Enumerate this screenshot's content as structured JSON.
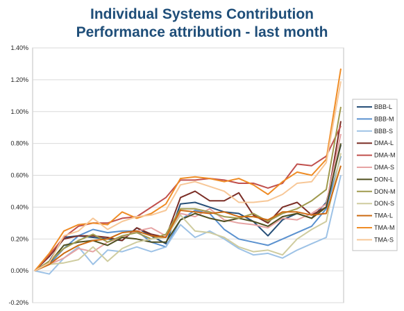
{
  "chart_data": {
    "type": "line",
    "title": "Individual Systems Contribution",
    "subtitle": "Performance attribution - last month",
    "ylim": [
      -0.2,
      1.4
    ],
    "yticks": [
      "-0.20%",
      "0.00%",
      "0.20%",
      "0.40%",
      "0.60%",
      "0.80%",
      "1.00%",
      "1.20%",
      "1.40%"
    ],
    "grid": "horizontal",
    "legend_position": "right",
    "series": [
      {
        "name": "BBB-L",
        "color": "#264f78",
        "values": [
          0.0,
          0.06,
          0.21,
          0.22,
          0.21,
          0.2,
          0.19,
          0.27,
          0.22,
          0.17,
          0.42,
          0.43,
          0.4,
          0.37,
          0.36,
          0.31,
          0.22,
          0.32,
          0.36,
          0.33,
          0.43,
          0.79
        ]
      },
      {
        "name": "BBB-M",
        "color": "#5a91cf",
        "values": [
          0.0,
          0.04,
          0.14,
          0.22,
          0.26,
          0.24,
          0.25,
          0.25,
          0.18,
          0.15,
          0.32,
          0.38,
          0.36,
          0.26,
          0.2,
          0.18,
          0.16,
          0.2,
          0.24,
          0.28,
          0.39,
          0.72
        ]
      },
      {
        "name": "BBB-S",
        "color": "#9dc2e6",
        "values": [
          0.0,
          -0.02,
          0.08,
          0.15,
          0.04,
          0.13,
          0.12,
          0.15,
          0.12,
          0.15,
          0.29,
          0.21,
          0.25,
          0.2,
          0.14,
          0.1,
          0.11,
          0.08,
          0.13,
          0.17,
          0.21,
          0.6
        ]
      },
      {
        "name": "DMA-L",
        "color": "#7b2e26",
        "values": [
          0.0,
          0.09,
          0.2,
          0.22,
          0.22,
          0.21,
          0.19,
          0.27,
          0.23,
          0.21,
          0.46,
          0.5,
          0.44,
          0.44,
          0.49,
          0.35,
          0.3,
          0.4,
          0.43,
          0.35,
          0.4,
          0.94
        ]
      },
      {
        "name": "DMA-M",
        "color": "#c0504d",
        "values": [
          0.0,
          0.1,
          0.21,
          0.28,
          0.3,
          0.3,
          0.33,
          0.34,
          0.4,
          0.46,
          0.57,
          0.57,
          0.58,
          0.57,
          0.55,
          0.55,
          0.52,
          0.55,
          0.67,
          0.66,
          0.72,
          0.91
        ]
      },
      {
        "name": "DMA-S",
        "color": "#e6a3a3",
        "values": [
          0.0,
          0.04,
          0.08,
          0.14,
          0.12,
          0.18,
          0.21,
          0.25,
          0.27,
          0.22,
          0.36,
          0.34,
          0.39,
          0.32,
          0.3,
          0.29,
          0.27,
          0.33,
          0.32,
          0.36,
          0.42,
          0.86
        ]
      },
      {
        "name": "DON-L",
        "color": "#4f4f1f",
        "values": [
          0.0,
          0.05,
          0.16,
          0.18,
          0.19,
          0.16,
          0.21,
          0.2,
          0.18,
          0.18,
          0.32,
          0.36,
          0.33,
          0.31,
          0.33,
          0.31,
          0.28,
          0.34,
          0.36,
          0.33,
          0.4,
          0.8
        ]
      },
      {
        "name": "DON-M",
        "color": "#a09a4e",
        "values": [
          0.0,
          0.06,
          0.14,
          0.19,
          0.23,
          0.18,
          0.22,
          0.24,
          0.2,
          0.23,
          0.39,
          0.39,
          0.37,
          0.34,
          0.33,
          0.36,
          0.31,
          0.36,
          0.39,
          0.44,
          0.51,
          1.03
        ]
      },
      {
        "name": "DON-S",
        "color": "#cfcc9f",
        "values": [
          0.0,
          0.04,
          0.05,
          0.07,
          0.15,
          0.06,
          0.14,
          0.18,
          0.2,
          0.21,
          0.35,
          0.25,
          0.24,
          0.21,
          0.15,
          0.12,
          0.13,
          0.1,
          0.2,
          0.26,
          0.31,
          0.74
        ]
      },
      {
        "name": "TMA-L",
        "color": "#cc6a12",
        "values": [
          0.0,
          0.04,
          0.11,
          0.16,
          0.19,
          0.2,
          0.24,
          0.25,
          0.22,
          0.21,
          0.38,
          0.37,
          0.36,
          0.37,
          0.34,
          0.34,
          0.32,
          0.37,
          0.37,
          0.35,
          0.36,
          0.66
        ]
      },
      {
        "name": "TMA-M",
        "color": "#ef8c25",
        "values": [
          0.0,
          0.11,
          0.25,
          0.29,
          0.3,
          0.29,
          0.37,
          0.33,
          0.36,
          0.42,
          0.58,
          0.59,
          0.58,
          0.56,
          0.58,
          0.54,
          0.48,
          0.56,
          0.62,
          0.6,
          0.7,
          1.27
        ]
      },
      {
        "name": "TMA-S",
        "color": "#f7c797",
        "values": [
          0.0,
          0.05,
          0.22,
          0.25,
          0.33,
          0.26,
          0.31,
          0.34,
          0.35,
          0.38,
          0.54,
          0.56,
          0.53,
          0.5,
          0.43,
          0.43,
          0.44,
          0.48,
          0.55,
          0.56,
          0.68,
          1.19
        ]
      }
    ]
  }
}
